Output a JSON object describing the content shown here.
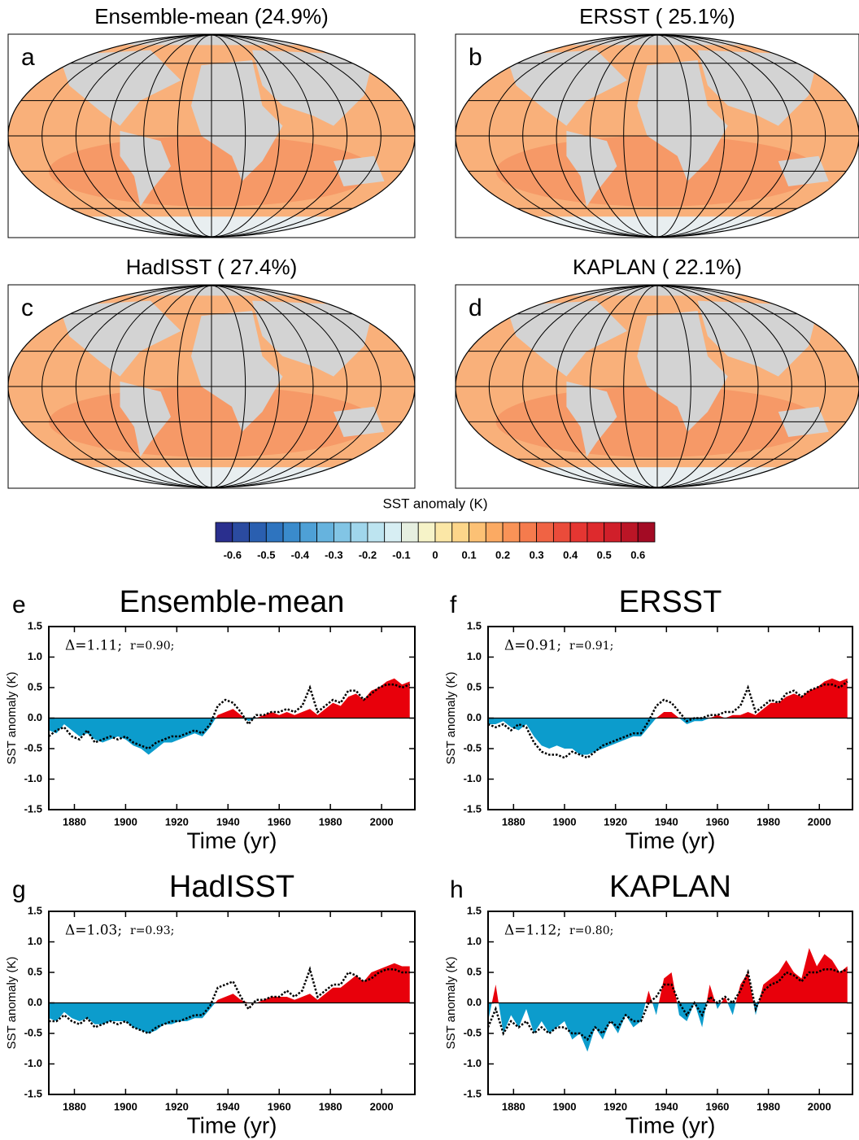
{
  "chart_data": [
    {
      "type": "map",
      "title": "Ensemble-mean (24.9%)",
      "panel": "a"
    },
    {
      "type": "map",
      "title": "ERSST  ( 25.1%)",
      "panel": "b"
    },
    {
      "type": "map",
      "title": "HadISST  ( 27.4%)",
      "panel": "c"
    },
    {
      "type": "map",
      "title": "KAPLAN  ( 22.1%)",
      "panel": "d"
    },
    {
      "type": "colorbar",
      "title": "SST anomaly (K)",
      "colors": [
        "#2a2f8e",
        "#2b4ba0",
        "#2a5fb0",
        "#2e74bf",
        "#3a8bcc",
        "#4ea0d6",
        "#66b3de",
        "#82c5e5",
        "#a0d6ec",
        "#bde4f0",
        "#d7eef3",
        "#e6efe0",
        "#f6f3c8",
        "#fbe7a6",
        "#fcd68a",
        "#fcc175",
        "#fbaa63",
        "#f99357",
        "#f57b4d",
        "#f06344",
        "#ea4b3a",
        "#e53632",
        "#de2a2d",
        "#d01f2a",
        "#bb1526",
        "#a30b24"
      ],
      "xlim": [
        -0.65,
        0.65
      ],
      "xticks": [
        -0.6,
        -0.5,
        -0.4,
        -0.3,
        -0.2,
        -0.1,
        0,
        0.1,
        0.2,
        0.3,
        0.4,
        0.5,
        0.6
      ]
    },
    {
      "type": "area",
      "title": "Ensemble-mean",
      "panel": "e",
      "x_label": "Time (yr)",
      "y_label": "SST anomaly (K)",
      "annotations": [
        "Δ=1.11;",
        "r=0.90;"
      ],
      "x": [
        1870,
        1873,
        1876,
        1879,
        1882,
        1885,
        1888,
        1891,
        1894,
        1897,
        1900,
        1903,
        1906,
        1909,
        1912,
        1915,
        1918,
        1921,
        1924,
        1927,
        1930,
        1933,
        1936,
        1939,
        1942,
        1945,
        1948,
        1951,
        1954,
        1957,
        1960,
        1963,
        1966,
        1969,
        1972,
        1975,
        1978,
        1981,
        1984,
        1987,
        1990,
        1993,
        1996,
        1999,
        2002,
        2005,
        2008,
        2011
      ],
      "series": [
        {
          "colors": [
            "#e8000b",
            "#0c9ccc"
          ],
          "values": [
            -0.2,
            -0.25,
            -0.1,
            -0.2,
            -0.3,
            -0.25,
            -0.35,
            -0.4,
            -0.35,
            -0.3,
            -0.35,
            -0.45,
            -0.5,
            -0.6,
            -0.5,
            -0.4,
            -0.4,
            -0.35,
            -0.3,
            -0.25,
            -0.3,
            -0.15,
            0.05,
            0.1,
            0.15,
            0.05,
            -0.05,
            0.0,
            0.05,
            0.1,
            0.05,
            0.1,
            0.05,
            0.1,
            0.15,
            0.05,
            0.15,
            0.25,
            0.2,
            0.35,
            0.4,
            0.3,
            0.45,
            0.5,
            0.6,
            0.65,
            0.55,
            0.6
          ]
        },
        {
          "color": "#000000",
          "dashed": true,
          "values": [
            -0.3,
            -0.2,
            -0.15,
            -0.3,
            -0.35,
            -0.2,
            -0.4,
            -0.35,
            -0.3,
            -0.35,
            -0.3,
            -0.4,
            -0.45,
            -0.5,
            -0.4,
            -0.35,
            -0.3,
            -0.3,
            -0.25,
            -0.2,
            -0.25,
            -0.1,
            0.2,
            0.3,
            0.25,
            0.1,
            -0.1,
            0.05,
            0.05,
            0.1,
            0.1,
            0.15,
            0.1,
            0.2,
            0.5,
            0.1,
            0.2,
            0.3,
            0.25,
            0.45,
            0.45,
            0.3,
            0.4,
            0.5,
            0.55,
            0.55,
            0.5,
            0.55
          ]
        }
      ],
      "xlim": [
        1870,
        2013
      ],
      "xticks": [
        1880,
        1900,
        1920,
        1940,
        1960,
        1980,
        2000
      ],
      "ylim": [
        -1.5,
        1.5
      ],
      "yticks": [
        -1.5,
        {
          "value": -1,
          "label": "-1.0"
        },
        -0.5,
        {
          "value": 0,
          "label": "0.0"
        },
        0.5,
        {
          "value": 1,
          "label": "1.0"
        },
        1.5
      ]
    },
    {
      "type": "area",
      "title": "ERSST",
      "panel": "f",
      "x_label": "Time (yr)",
      "y_label": "SST anomaly (K)",
      "annotations": [
        "Δ=0.91;",
        "r=0.91;"
      ],
      "x": [
        1870,
        1873,
        1876,
        1879,
        1882,
        1885,
        1888,
        1891,
        1894,
        1897,
        1900,
        1903,
        1906,
        1909,
        1912,
        1915,
        1918,
        1921,
        1924,
        1927,
        1930,
        1933,
        1936,
        1939,
        1942,
        1945,
        1948,
        1951,
        1954,
        1957,
        1960,
        1963,
        1966,
        1969,
        1972,
        1975,
        1978,
        1981,
        1984,
        1987,
        1990,
        1993,
        1996,
        1999,
        2002,
        2005,
        2008,
        2011
      ],
      "series": [
        {
          "colors": [
            "#e8000b",
            "#0c9ccc"
          ],
          "values": [
            -0.1,
            -0.1,
            -0.05,
            -0.15,
            -0.2,
            -0.1,
            -0.3,
            -0.45,
            -0.5,
            -0.45,
            -0.5,
            -0.5,
            -0.6,
            -0.6,
            -0.55,
            -0.5,
            -0.45,
            -0.4,
            -0.35,
            -0.3,
            -0.3,
            -0.15,
            0.0,
            0.1,
            0.1,
            0.0,
            -0.1,
            -0.05,
            -0.05,
            0.0,
            0.05,
            0.0,
            0.05,
            0.05,
            0.1,
            0.05,
            0.15,
            0.25,
            0.25,
            0.35,
            0.4,
            0.35,
            0.45,
            0.5,
            0.6,
            0.65,
            0.6,
            0.65
          ]
        },
        {
          "color": "#000000",
          "dashed": true,
          "values": [
            -0.1,
            -0.15,
            -0.1,
            -0.2,
            -0.1,
            -0.15,
            -0.4,
            -0.55,
            -0.6,
            -0.6,
            -0.65,
            -0.55,
            -0.6,
            -0.65,
            -0.55,
            -0.45,
            -0.4,
            -0.35,
            -0.3,
            -0.25,
            -0.25,
            -0.05,
            0.2,
            0.3,
            0.25,
            0.1,
            -0.05,
            0.0,
            0.0,
            0.05,
            0.05,
            0.1,
            0.1,
            0.2,
            0.5,
            0.1,
            0.2,
            0.3,
            0.25,
            0.4,
            0.45,
            0.35,
            0.45,
            0.5,
            0.55,
            0.55,
            0.5,
            0.6
          ]
        }
      ],
      "xlim": [
        1870,
        2013
      ],
      "xticks": [
        1880,
        1900,
        1920,
        1940,
        1960,
        1980,
        2000
      ],
      "ylim": [
        -1.5,
        1.5
      ],
      "yticks": [
        -1.5,
        {
          "value": -1,
          "label": "-1.0"
        },
        -0.5,
        {
          "value": 0,
          "label": "0.0"
        },
        0.5,
        {
          "value": 1,
          "label": "1.0"
        },
        1.5
      ]
    },
    {
      "type": "area",
      "title": "HadISST",
      "panel": "g",
      "x_label": "Time (yr)",
      "y_label": "SST anomaly (K)",
      "annotations": [
        "Δ=1.03;",
        "r=0.93;"
      ],
      "x": [
        1870,
        1873,
        1876,
        1879,
        1882,
        1885,
        1888,
        1891,
        1894,
        1897,
        1900,
        1903,
        1906,
        1909,
        1912,
        1915,
        1918,
        1921,
        1924,
        1927,
        1930,
        1933,
        1936,
        1939,
        1942,
        1945,
        1948,
        1951,
        1954,
        1957,
        1960,
        1963,
        1966,
        1969,
        1972,
        1975,
        1978,
        1981,
        1984,
        1987,
        1990,
        1993,
        1996,
        1999,
        2002,
        2005,
        2008,
        2011
      ],
      "series": [
        {
          "colors": [
            "#e8000b",
            "#0c9ccc"
          ],
          "values": [
            -0.25,
            -0.3,
            -0.15,
            -0.25,
            -0.3,
            -0.25,
            -0.35,
            -0.35,
            -0.3,
            -0.3,
            -0.3,
            -0.4,
            -0.45,
            -0.5,
            -0.45,
            -0.35,
            -0.35,
            -0.3,
            -0.3,
            -0.25,
            -0.25,
            -0.1,
            0.05,
            0.1,
            0.15,
            0.05,
            0.0,
            0.0,
            0.05,
            0.1,
            0.1,
            0.1,
            0.05,
            0.1,
            0.15,
            0.05,
            0.15,
            0.25,
            0.25,
            0.35,
            0.45,
            0.35,
            0.5,
            0.55,
            0.6,
            0.65,
            0.6,
            0.6
          ]
        },
        {
          "color": "#000000",
          "dashed": true,
          "values": [
            -0.3,
            -0.3,
            -0.2,
            -0.3,
            -0.35,
            -0.25,
            -0.4,
            -0.35,
            -0.3,
            -0.35,
            -0.3,
            -0.4,
            -0.45,
            -0.5,
            -0.4,
            -0.35,
            -0.3,
            -0.3,
            -0.25,
            -0.2,
            -0.2,
            -0.05,
            0.25,
            0.3,
            0.35,
            0.1,
            -0.1,
            0.05,
            0.05,
            0.1,
            0.1,
            0.2,
            0.1,
            0.2,
            0.55,
            0.1,
            0.2,
            0.3,
            0.3,
            0.5,
            0.45,
            0.35,
            0.4,
            0.5,
            0.55,
            0.55,
            0.5,
            0.5
          ]
        }
      ],
      "xlim": [
        1870,
        2013
      ],
      "xticks": [
        1880,
        1900,
        1920,
        1940,
        1960,
        1980,
        2000
      ],
      "ylim": [
        -1.5,
        1.5
      ],
      "yticks": [
        -1.5,
        {
          "value": -1,
          "label": "-1.0"
        },
        -0.5,
        {
          "value": 0,
          "label": "0.0"
        },
        0.5,
        {
          "value": 1,
          "label": "1.0"
        },
        1.5
      ]
    },
    {
      "type": "area",
      "title": "KAPLAN",
      "panel": "h",
      "x_label": "Time (yr)",
      "y_label": "SST anomaly (K)",
      "annotations": [
        "Δ=1.12;",
        "r=0.80;"
      ],
      "x": [
        1870,
        1873,
        1876,
        1879,
        1882,
        1885,
        1888,
        1891,
        1894,
        1897,
        1900,
        1903,
        1906,
        1909,
        1912,
        1915,
        1918,
        1921,
        1924,
        1927,
        1930,
        1933,
        1936,
        1939,
        1942,
        1945,
        1948,
        1951,
        1954,
        1957,
        1960,
        1963,
        1966,
        1969,
        1972,
        1975,
        1978,
        1981,
        1984,
        1987,
        1990,
        1993,
        1996,
        1999,
        2002,
        2005,
        2008,
        2011
      ],
      "series": [
        {
          "colors": [
            "#e8000b",
            "#0c9ccc"
          ],
          "values": [
            -0.3,
            0.3,
            -0.5,
            -0.2,
            -0.4,
            -0.1,
            -0.5,
            -0.3,
            -0.5,
            -0.4,
            -0.3,
            -0.6,
            -0.5,
            -0.8,
            -0.4,
            -0.6,
            -0.3,
            -0.5,
            -0.2,
            -0.4,
            -0.3,
            0.2,
            -0.2,
            0.4,
            0.5,
            -0.2,
            -0.3,
            0.0,
            -0.4,
            0.3,
            -0.1,
            0.1,
            -0.2,
            0.3,
            0.5,
            -0.2,
            0.3,
            0.4,
            0.5,
            0.7,
            0.5,
            0.4,
            0.9,
            0.6,
            0.8,
            0.7,
            0.5,
            0.6
          ]
        },
        {
          "color": "#000000",
          "dashed": true,
          "values": [
            -0.4,
            -0.1,
            -0.5,
            -0.3,
            -0.4,
            -0.3,
            -0.5,
            -0.4,
            -0.5,
            -0.4,
            -0.4,
            -0.5,
            -0.5,
            -0.6,
            -0.4,
            -0.5,
            -0.3,
            -0.4,
            -0.2,
            -0.3,
            -0.3,
            0.0,
            0.1,
            0.3,
            0.3,
            0.0,
            -0.2,
            0.0,
            -0.2,
            0.1,
            0.0,
            0.1,
            0.0,
            0.2,
            0.5,
            -0.1,
            0.2,
            0.3,
            0.35,
            0.5,
            0.45,
            0.35,
            0.5,
            0.5,
            0.55,
            0.55,
            0.5,
            0.55
          ]
        }
      ],
      "xlim": [
        1870,
        2013
      ],
      "xticks": [
        1880,
        1900,
        1920,
        1940,
        1960,
        1980,
        2000
      ],
      "ylim": [
        -1.5,
        1.5
      ],
      "yticks": [
        -1.5,
        {
          "value": -1,
          "label": "-1.0"
        },
        -0.5,
        {
          "value": 0,
          "label": "0.0"
        },
        0.5,
        {
          "value": 1,
          "label": "1.0"
        },
        1.5
      ]
    }
  ]
}
